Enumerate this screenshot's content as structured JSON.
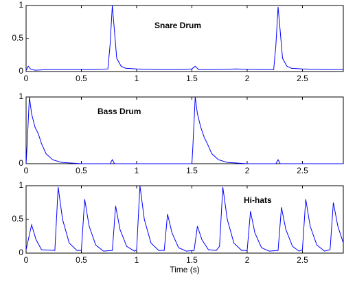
{
  "chart_data": [
    {
      "type": "line",
      "annotation": "Snare Drum",
      "color": "#0000ff",
      "x": [
        0,
        0.02,
        0.04,
        0.08,
        0.2,
        0.4,
        0.6,
        0.74,
        0.76,
        0.78,
        0.8,
        0.82,
        0.86,
        0.9,
        1.0,
        1.2,
        1.4,
        1.5,
        1.53,
        1.56,
        1.7,
        1.9,
        2.1,
        2.24,
        2.26,
        2.28,
        2.3,
        2.32,
        2.36,
        2.4,
        2.5,
        2.7,
        2.87
      ],
      "values": [
        0.02,
        0.08,
        0.04,
        0.02,
        0.03,
        0.03,
        0.03,
        0.04,
        0.4,
        1.0,
        0.6,
        0.2,
        0.08,
        0.05,
        0.04,
        0.03,
        0.03,
        0.04,
        0.08,
        0.03,
        0.03,
        0.04,
        0.03,
        0.03,
        0.4,
        0.98,
        0.6,
        0.2,
        0.08,
        0.05,
        0.04,
        0.03,
        0.03
      ],
      "xlim": [
        0,
        2.87
      ],
      "ylim": [
        0,
        1
      ],
      "xticks": [
        0,
        0.5,
        1,
        1.5,
        2,
        2.5
      ],
      "yticks": [
        0,
        0.5,
        1
      ]
    },
    {
      "type": "line",
      "annotation": "Bass Drum",
      "color": "#0000ff",
      "x": [
        0,
        0.01,
        0.03,
        0.05,
        0.08,
        0.11,
        0.14,
        0.18,
        0.24,
        0.32,
        0.5,
        0.76,
        0.78,
        0.8,
        1.0,
        1.3,
        1.5,
        1.51,
        1.53,
        1.55,
        1.58,
        1.61,
        1.64,
        1.68,
        1.74,
        1.82,
        2.0,
        2.26,
        2.28,
        2.3,
        2.5,
        2.87
      ],
      "values": [
        0,
        0.3,
        1.0,
        0.75,
        0.55,
        0.45,
        0.3,
        0.15,
        0.06,
        0.02,
        0,
        0,
        0.06,
        0,
        0,
        0,
        0,
        0.3,
        1.0,
        0.75,
        0.55,
        0.4,
        0.3,
        0.15,
        0.06,
        0.02,
        0,
        0,
        0.06,
        0,
        0,
        0
      ],
      "xlim": [
        0,
        2.87
      ],
      "ylim": [
        0,
        1
      ],
      "xticks": [
        0,
        0.5,
        1,
        1.5,
        2,
        2.5
      ],
      "yticks": [
        0,
        1
      ]
    },
    {
      "type": "line",
      "annotation": "Hi-hats",
      "xlabel": "Time (s)",
      "color": "#0000ff",
      "x": [
        0,
        0.05,
        0.09,
        0.14,
        0.26,
        0.29,
        0.33,
        0.39,
        0.46,
        0.5,
        0.53,
        0.57,
        0.63,
        0.7,
        0.78,
        0.81,
        0.85,
        0.91,
        0.98,
        1.0,
        1.03,
        1.07,
        1.13,
        1.2,
        1.25,
        1.28,
        1.32,
        1.38,
        1.45,
        1.52,
        1.55,
        1.59,
        1.65,
        1.72,
        1.75,
        1.78,
        1.82,
        1.88,
        1.95,
        2.0,
        2.03,
        2.07,
        2.13,
        2.2,
        2.28,
        2.31,
        2.35,
        2.41,
        2.47,
        2.5,
        2.53,
        2.57,
        2.63,
        2.7,
        2.75,
        2.78,
        2.82,
        2.87
      ],
      "values": [
        0.05,
        0.42,
        0.2,
        0.05,
        0.04,
        0.98,
        0.5,
        0.15,
        0.04,
        0.04,
        0.8,
        0.4,
        0.12,
        0.03,
        0.04,
        0.7,
        0.35,
        0.1,
        0.03,
        0.05,
        1.0,
        0.5,
        0.15,
        0.04,
        0.04,
        0.58,
        0.3,
        0.08,
        0.03,
        0.04,
        0.4,
        0.2,
        0.05,
        0.04,
        0.1,
        0.98,
        0.5,
        0.15,
        0.04,
        0.04,
        0.62,
        0.3,
        0.08,
        0.03,
        0.04,
        0.68,
        0.35,
        0.1,
        0.03,
        0.05,
        0.8,
        0.4,
        0.12,
        0.03,
        0.05,
        0.75,
        0.4,
        0.15
      ],
      "xlim": [
        0,
        2.87
      ],
      "ylim": [
        0,
        1
      ],
      "xticks": [
        0,
        0.5,
        1,
        1.5,
        2,
        2.5
      ],
      "yticks": [
        0,
        0.5,
        1
      ]
    }
  ]
}
